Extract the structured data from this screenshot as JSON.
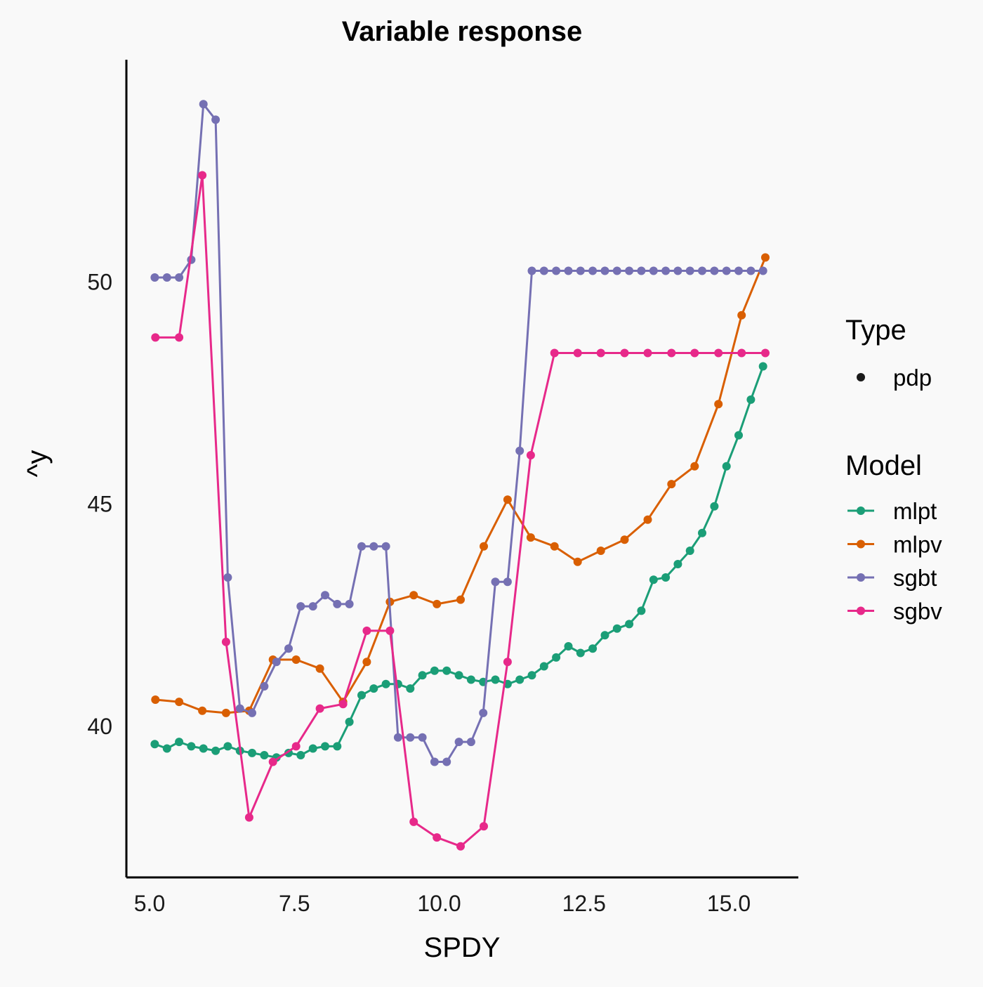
{
  "chart_data": {
    "type": "line",
    "title": "Variable response",
    "xlabel": "SPDY",
    "ylabel": "^y",
    "xlim": [
      4.6,
      16.2
    ],
    "ylim": [
      36.6,
      55.0
    ],
    "x_ticks": [
      5.0,
      7.5,
      10.0,
      12.5,
      15.0
    ],
    "x_tick_labels": [
      "5.0",
      "7.5",
      "10.0",
      "12.5",
      "15.0"
    ],
    "y_ticks": [
      40,
      45,
      50
    ],
    "y_tick_labels": [
      "40",
      "45",
      "50"
    ],
    "grid": false,
    "legend": {
      "placement": "right",
      "type_title": "Type",
      "type_entries": [
        {
          "label": "pdp",
          "color": "#1a1a1a"
        }
      ],
      "model_title": "Model"
    },
    "series": [
      {
        "name": "mlpt",
        "color": "#1b9e77",
        "x": [
          5.09,
          5.3,
          5.51,
          5.72,
          5.93,
          6.14,
          6.35,
          6.56,
          6.77,
          6.98,
          7.19,
          7.4,
          7.61,
          7.82,
          8.03,
          8.24,
          8.45,
          8.66,
          8.87,
          9.08,
          9.29,
          9.5,
          9.71,
          9.92,
          10.13,
          10.34,
          10.55,
          10.76,
          10.97,
          11.18,
          11.39,
          11.6,
          11.81,
          12.02,
          12.23,
          12.44,
          12.65,
          12.86,
          13.07,
          13.28,
          13.49,
          13.7,
          13.91,
          14.12,
          14.33,
          14.54,
          14.75,
          14.96,
          15.17,
          15.38,
          15.59
        ],
        "y": [
          39.6,
          39.5,
          39.65,
          39.55,
          39.5,
          39.45,
          39.55,
          39.45,
          39.4,
          39.35,
          39.3,
          39.4,
          39.35,
          39.5,
          39.55,
          39.55,
          40.1,
          40.7,
          40.85,
          40.95,
          40.95,
          40.85,
          41.15,
          41.25,
          41.25,
          41.15,
          41.05,
          41.0,
          41.05,
          40.95,
          41.05,
          41.15,
          41.35,
          41.55,
          41.8,
          41.65,
          41.75,
          42.05,
          42.2,
          42.3,
          42.6,
          43.3,
          43.35,
          43.65,
          43.95,
          44.35,
          44.95,
          45.85,
          46.55,
          47.35,
          48.1
        ]
      },
      {
        "name": "mlpv",
        "color": "#d95f02",
        "x": [
          5.1,
          5.51,
          5.91,
          6.32,
          6.72,
          7.13,
          7.53,
          7.94,
          8.34,
          8.75,
          9.15,
          9.56,
          9.96,
          10.37,
          10.77,
          11.18,
          11.58,
          11.99,
          12.39,
          12.79,
          13.2,
          13.6,
          14.01,
          14.41,
          14.82,
          15.22,
          15.63
        ],
        "y": [
          40.6,
          40.55,
          40.35,
          40.3,
          40.35,
          41.5,
          41.5,
          41.3,
          40.55,
          41.45,
          42.8,
          42.95,
          42.75,
          42.85,
          44.05,
          45.1,
          44.25,
          44.05,
          43.7,
          43.95,
          44.2,
          44.65,
          45.45,
          45.85,
          47.25,
          49.25,
          50.55
        ]
      },
      {
        "name": "sgbt",
        "color": "#7570b3",
        "x": [
          5.09,
          5.3,
          5.51,
          5.72,
          5.93,
          6.14,
          6.35,
          6.56,
          6.77,
          6.98,
          7.19,
          7.4,
          7.61,
          7.82,
          8.03,
          8.24,
          8.45,
          8.66,
          8.87,
          9.08,
          9.29,
          9.5,
          9.71,
          9.92,
          10.13,
          10.34,
          10.55,
          10.76,
          10.97,
          11.18,
          11.39,
          11.6,
          11.81,
          12.02,
          12.23,
          12.44,
          12.65,
          12.86,
          13.07,
          13.28,
          13.49,
          13.7,
          13.91,
          14.12,
          14.33,
          14.54,
          14.75,
          14.96,
          15.17,
          15.38,
          15.59
        ],
        "y": [
          50.1,
          50.1,
          50.1,
          50.5,
          54.0,
          53.65,
          43.35,
          40.4,
          40.3,
          40.9,
          41.45,
          41.75,
          42.7,
          42.7,
          42.95,
          42.75,
          42.75,
          44.05,
          44.05,
          44.05,
          39.75,
          39.75,
          39.75,
          39.2,
          39.2,
          39.65,
          39.65,
          40.3,
          43.25,
          43.25,
          46.2,
          50.25,
          50.25,
          50.25,
          50.25,
          50.25,
          50.25,
          50.25,
          50.25,
          50.25,
          50.25,
          50.25,
          50.25,
          50.25,
          50.25,
          50.25,
          50.25,
          50.25,
          50.25,
          50.25,
          50.25
        ]
      },
      {
        "name": "sgbv",
        "color": "#e7298a",
        "x": [
          5.1,
          5.51,
          5.91,
          6.32,
          6.72,
          7.13,
          7.53,
          7.94,
          8.34,
          8.75,
          9.15,
          9.56,
          9.96,
          10.37,
          10.77,
          11.18,
          11.58,
          11.99,
          12.39,
          12.79,
          13.2,
          13.6,
          14.01,
          14.41,
          14.82,
          15.22,
          15.63
        ],
        "y": [
          48.75,
          48.75,
          52.4,
          41.9,
          37.95,
          39.2,
          39.55,
          40.4,
          40.5,
          42.15,
          42.15,
          37.85,
          37.5,
          37.3,
          37.75,
          41.45,
          46.1,
          48.4,
          48.4,
          48.4,
          48.4,
          48.4,
          48.4,
          48.4,
          48.4,
          48.4,
          48.4
        ]
      }
    ]
  }
}
